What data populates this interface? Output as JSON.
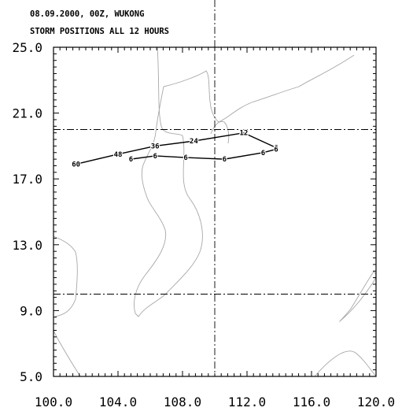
{
  "header": {
    "line1": "08.09.2000, 00Z, WUKONG",
    "line2": "STORM POSITIONS ALL 12 HOURS"
  },
  "chart_data": {
    "type": "line",
    "title": "08.09.2000, 00Z, WUKONG",
    "subtitle": "STORM POSITIONS ALL 12 HOURS",
    "xlim": [
      100.0,
      120.0
    ],
    "ylim": [
      5.0,
      25.0
    ],
    "x_ticks": [
      "100.0",
      "104.0",
      "108.0",
      "112.0",
      "116.0",
      "120.0"
    ],
    "y_ticks": [
      "25.0",
      "21.0",
      "17.0",
      "13.0",
      "9.0",
      "5.0"
    ],
    "x_tick_values": [
      100,
      104,
      108,
      112,
      116,
      120
    ],
    "y_tick_values": [
      25,
      21,
      17,
      13,
      9,
      5
    ],
    "reference_lines": {
      "vertical": [
        110.0
      ],
      "horizontal": [
        20.0,
        10.0
      ]
    },
    "series": [
      {
        "points": [
          {
            "lon": 113.8,
            "lat": 18.9,
            "label": "6"
          },
          {
            "lon": 111.8,
            "lat": 19.8,
            "label": "12"
          },
          {
            "lon": 108.7,
            "lat": 19.3,
            "label": "24"
          },
          {
            "lon": 106.3,
            "lat": 19.0,
            "label": "36"
          },
          {
            "lon": 104.0,
            "lat": 18.5,
            "label": "48"
          },
          {
            "lon": 101.4,
            "lat": 17.9,
            "label": "60"
          }
        ]
      },
      {
        "points": [
          {
            "lon": 113.8,
            "lat": 18.8,
            "label": "6"
          },
          {
            "lon": 113.0,
            "lat": 18.6,
            "label": "6"
          },
          {
            "lon": 110.6,
            "lat": 18.2,
            "label": "6"
          },
          {
            "lon": 108.2,
            "lat": 18.3,
            "label": "6"
          },
          {
            "lon": 106.3,
            "lat": 18.4,
            "label": "6"
          },
          {
            "lon": 104.8,
            "lat": 18.2,
            "label": "6"
          }
        ]
      }
    ]
  }
}
